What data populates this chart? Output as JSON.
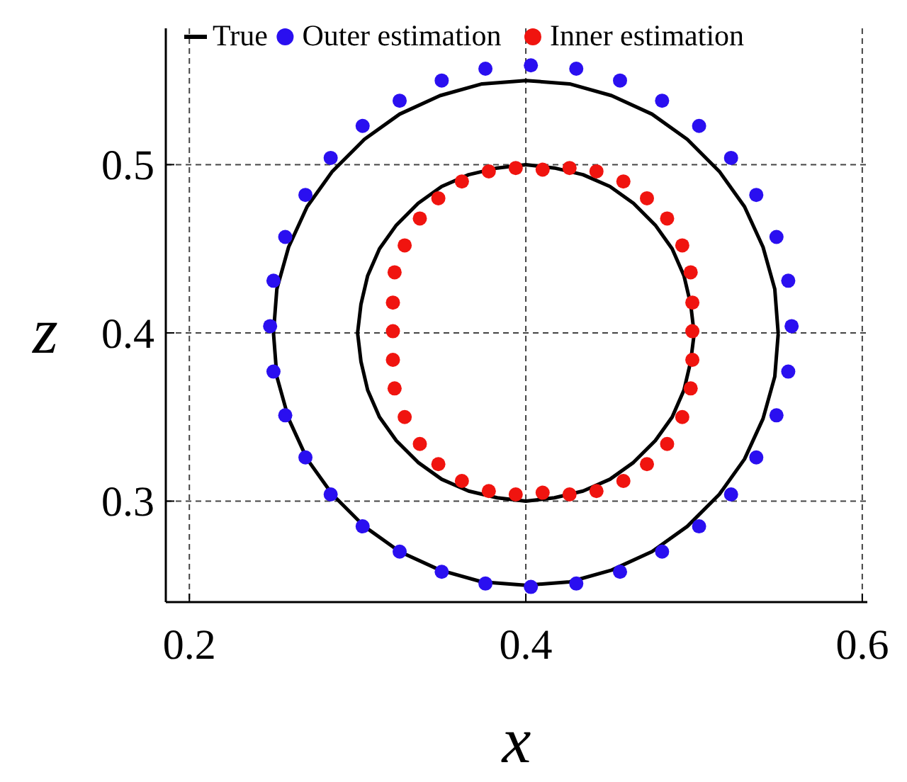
{
  "chart_data": {
    "type": "line",
    "xlabel": "x",
    "ylabel": "z",
    "xlim": [
      0.186,
      0.603
    ],
    "ylim": [
      0.24,
      0.581
    ],
    "xticks": [
      0.2,
      0.4,
      0.6
    ],
    "yticks": [
      0.3,
      0.4,
      0.5
    ],
    "grid": true,
    "legend": "top",
    "marker": "circle",
    "series": [
      {
        "name": "True",
        "color": "#000000",
        "line_style": "solid",
        "marker": "none",
        "x": [
          0.55,
          0.548,
          0.541,
          0.53,
          0.515,
          0.496,
          0.475,
          0.451,
          0.426,
          0.4,
          0.374,
          0.349,
          0.325,
          0.304,
          0.285,
          0.27,
          0.259,
          0.252,
          0.25,
          0.252,
          0.259,
          0.27,
          0.285,
          0.304,
          0.325,
          0.349,
          0.374,
          0.4,
          0.426,
          0.451,
          0.475,
          0.496,
          0.515,
          0.53,
          0.541,
          0.548,
          0.55
        ],
        "values": [
          0.4,
          0.426,
          0.451,
          0.475,
          0.496,
          0.515,
          0.53,
          0.541,
          0.548,
          0.55,
          0.548,
          0.541,
          0.53,
          0.515,
          0.496,
          0.475,
          0.451,
          0.426,
          0.4,
          0.374,
          0.349,
          0.325,
          0.304,
          0.285,
          0.27,
          0.259,
          0.252,
          0.25,
          0.252,
          0.259,
          0.27,
          0.285,
          0.304,
          0.325,
          0.349,
          0.374,
          0.399
        ]
      },
      {
        "color": "#000000",
        "line_style": "solid",
        "marker": "none",
        "x": [
          0.5,
          0.498,
          0.494,
          0.487,
          0.477,
          0.464,
          0.45,
          0.434,
          0.417,
          0.4,
          0.383,
          0.366,
          0.35,
          0.336,
          0.323,
          0.313,
          0.306,
          0.302,
          0.3,
          0.302,
          0.306,
          0.313,
          0.323,
          0.336,
          0.35,
          0.366,
          0.383,
          0.4,
          0.417,
          0.434,
          0.45,
          0.464,
          0.477,
          0.487,
          0.494,
          0.498,
          0.5
        ],
        "values": [
          0.4,
          0.417,
          0.434,
          0.45,
          0.464,
          0.477,
          0.487,
          0.494,
          0.498,
          0.5,
          0.498,
          0.494,
          0.487,
          0.477,
          0.464,
          0.45,
          0.434,
          0.417,
          0.4,
          0.383,
          0.366,
          0.35,
          0.336,
          0.323,
          0.313,
          0.306,
          0.302,
          0.3,
          0.302,
          0.306,
          0.313,
          0.323,
          0.336,
          0.35,
          0.366,
          0.383,
          0.399
        ]
      },
      {
        "name": "Outer estimation",
        "type": "scatter",
        "color": "#2a0ff0",
        "x": [
          0.558,
          0.556,
          0.549,
          0.537,
          0.522,
          0.503,
          0.481,
          0.456,
          0.43,
          0.403,
          0.376,
          0.35,
          0.325,
          0.303,
          0.284,
          0.269,
          0.257,
          0.25,
          0.248,
          0.25,
          0.257,
          0.269,
          0.284,
          0.303,
          0.325,
          0.35,
          0.376,
          0.403,
          0.43,
          0.456,
          0.481,
          0.503,
          0.522,
          0.537,
          0.549,
          0.556
        ],
        "values": [
          0.404,
          0.431,
          0.457,
          0.482,
          0.504,
          0.523,
          0.538,
          0.55,
          0.557,
          0.559,
          0.557,
          0.55,
          0.538,
          0.523,
          0.504,
          0.482,
          0.457,
          0.431,
          0.404,
          0.377,
          0.351,
          0.326,
          0.304,
          0.285,
          0.27,
          0.258,
          0.251,
          0.249,
          0.251,
          0.258,
          0.27,
          0.285,
          0.304,
          0.326,
          0.351,
          0.377
        ]
      },
      {
        "name": "Inner estimation",
        "type": "scatter",
        "color": "#f0140f",
        "x": [
          0.499,
          0.499,
          0.498,
          0.493,
          0.484,
          0.472,
          0.458,
          0.442,
          0.426,
          0.41,
          0.394,
          0.378,
          0.362,
          0.348,
          0.337,
          0.328,
          0.322,
          0.321,
          0.321,
          0.321,
          0.322,
          0.328,
          0.337,
          0.348,
          0.362,
          0.378,
          0.394,
          0.41,
          0.426,
          0.442,
          0.458,
          0.472,
          0.484,
          0.493,
          0.498,
          0.499
        ],
        "values": [
          0.401,
          0.418,
          0.436,
          0.452,
          0.468,
          0.48,
          0.49,
          0.496,
          0.498,
          0.497,
          0.498,
          0.496,
          0.49,
          0.48,
          0.468,
          0.452,
          0.436,
          0.418,
          0.401,
          0.384,
          0.367,
          0.35,
          0.334,
          0.322,
          0.312,
          0.306,
          0.304,
          0.305,
          0.304,
          0.306,
          0.312,
          0.322,
          0.334,
          0.35,
          0.367,
          0.384
        ]
      }
    ]
  }
}
